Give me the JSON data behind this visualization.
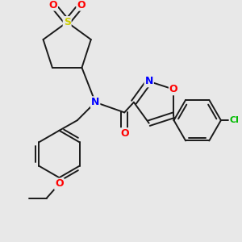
{
  "bg_color": "#e8e8e8",
  "bond_color": "#1a1a1a",
  "atoms": {
    "S": {
      "color": "#cccc00",
      "fontsize": 9,
      "fontweight": "bold"
    },
    "N": {
      "color": "#0000ff",
      "fontsize": 9,
      "fontweight": "bold"
    },
    "O": {
      "color": "#ff0000",
      "fontsize": 9,
      "fontweight": "bold"
    },
    "Cl": {
      "color": "#00bb00",
      "fontsize": 8,
      "fontweight": "bold"
    }
  },
  "lw": 1.4,
  "doff": 3.5,
  "figsize": [
    3.0,
    3.0
  ],
  "dpi": 100
}
